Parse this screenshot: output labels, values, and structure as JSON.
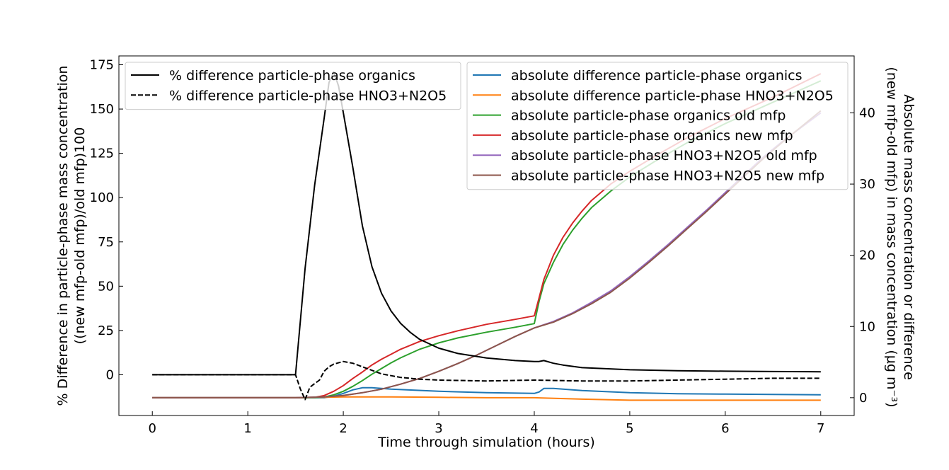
{
  "chart_data": {
    "type": "line",
    "x_axis": {
      "label": "Time through simulation (hours)",
      "range": [
        -0.35,
        7.35
      ],
      "ticks": [
        0,
        1,
        2,
        3,
        4,
        5,
        6,
        7
      ]
    },
    "y_left": {
      "label_line1": "% Difference in particle-phase mass concentration",
      "label_line2": "((new mfp-old mfp)/old mfp)100",
      "range": [
        -23,
        180
      ],
      "ticks": [
        0,
        25,
        50,
        75,
        100,
        125,
        150,
        175
      ]
    },
    "y_right": {
      "label_line1": "Absolute mass concentration or difference",
      "label_line2": "(new mfp-old mfp) in mass concentration (μg  m⁻³)",
      "range": [
        -2.5,
        48
      ],
      "ticks": [
        0,
        10,
        20,
        30,
        40
      ]
    },
    "legend_left": {
      "placement": "top-left",
      "entries": [
        {
          "name": "% difference particle-phase organics",
          "color": "#000000",
          "dash": "solid"
        },
        {
          "name": "% difference particle-phase HNO3+N2O5",
          "color": "#000000",
          "dash": "dashed"
        }
      ]
    },
    "legend_right": {
      "placement": "top-right",
      "entries": [
        {
          "name": "absolute difference particle-phase organics",
          "color": "#1f77b4"
        },
        {
          "name": "absolute difference particle-phase HNO3+N2O5",
          "color": "#ff7f0e"
        },
        {
          "name": "absolute particle-phase organics old mfp",
          "color": "#2ca02c"
        },
        {
          "name": "absolute particle-phase organics new mfp",
          "color": "#d62728"
        },
        {
          "name": "absolute particle-phase HNO3+N2O5 old mfp",
          "color": "#9467bd"
        },
        {
          "name": "absolute particle-phase HNO3+N2O5 new mfp",
          "color": "#8c564b"
        }
      ]
    },
    "series_left": [
      {
        "name": "% difference particle-phase organics",
        "color": "#000000",
        "dash": "solid",
        "x": [
          0,
          1.5,
          1.6,
          1.7,
          1.8,
          1.85,
          1.9,
          1.95,
          2.0,
          2.1,
          2.2,
          2.3,
          2.4,
          2.5,
          2.6,
          2.7,
          2.8,
          3.0,
          3.2,
          3.5,
          3.8,
          4.0,
          4.05,
          4.1,
          4.2,
          4.3,
          4.5,
          5.0,
          5.5,
          6.0,
          6.5,
          7.0
        ],
        "y": [
          0,
          0,
          60,
          107,
          145,
          165,
          171,
          163,
          148,
          117,
          84,
          61,
          46,
          36,
          29,
          24,
          20,
          15,
          12,
          9.5,
          8,
          7.5,
          7.5,
          8,
          6.5,
          5.5,
          4,
          2.8,
          2.3,
          2,
          1.8,
          1.7
        ]
      },
      {
        "name": "% difference particle-phase HNO3+N2O5",
        "color": "#000000",
        "dash": "dashed",
        "x": [
          0,
          1.5,
          1.55,
          1.6,
          1.65,
          1.7,
          1.75,
          1.8,
          1.85,
          1.9,
          2.0,
          2.1,
          2.2,
          2.3,
          2.4,
          2.5,
          2.6,
          2.8,
          3.0,
          3.5,
          4.0,
          4.5,
          5.0,
          5.5,
          6.0,
          6.5,
          7.0
        ],
        "y": [
          0,
          0,
          -8,
          -14,
          -7,
          -5,
          -3,
          2,
          4.5,
          6,
          7.5,
          6.5,
          4.5,
          2.5,
          0.5,
          -0.5,
          -1.5,
          -2.5,
          -3,
          -3.5,
          -3,
          -3.5,
          -3.5,
          -3,
          -2.5,
          -2,
          -2
        ]
      }
    ],
    "series_right": [
      {
        "name": "absolute difference particle-phase organics",
        "color": "#1f77b4",
        "x": [
          0,
          1.5,
          1.8,
          1.9,
          2.0,
          2.1,
          2.2,
          2.3,
          2.5,
          3.0,
          3.5,
          4.0,
          4.05,
          4.1,
          4.2,
          4.5,
          5.0,
          5.5,
          6.0,
          6.5,
          7.0
        ],
        "y": [
          0,
          0,
          0,
          0.2,
          0.6,
          1.1,
          1.4,
          1.4,
          1.2,
          0.9,
          0.7,
          0.6,
          0.8,
          1.3,
          1.3,
          1.0,
          0.7,
          0.55,
          0.5,
          0.45,
          0.4
        ]
      },
      {
        "name": "absolute difference particle-phase HNO3+N2O5",
        "color": "#ff7f0e",
        "x": [
          0,
          1.5,
          1.8,
          2.0,
          2.5,
          3.0,
          3.5,
          4.0,
          4.5,
          5.0,
          5.5,
          6.0,
          6.5,
          7.0
        ],
        "y": [
          0,
          0,
          0.05,
          0.1,
          0.1,
          0.05,
          0,
          0,
          -0.2,
          -0.35,
          -0.35,
          -0.35,
          -0.35,
          -0.35
        ]
      },
      {
        "name": "absolute particle-phase organics old mfp",
        "color": "#2ca02c",
        "x": [
          0,
          1.5,
          1.7,
          1.8,
          1.9,
          2.0,
          2.1,
          2.2,
          2.3,
          2.4,
          2.5,
          2.6,
          2.8,
          3.0,
          3.2,
          3.5,
          3.8,
          4.0,
          4.05,
          4.1,
          4.2,
          4.3,
          4.4,
          4.5,
          4.6,
          4.8,
          5.0,
          5.3,
          5.6,
          6.0,
          6.5,
          7.0
        ],
        "y": [
          0,
          0,
          0,
          0.1,
          0.4,
          0.9,
          1.6,
          2.4,
          3.3,
          4.1,
          4.9,
          5.6,
          6.8,
          7.7,
          8.4,
          9.2,
          9.9,
          10.4,
          13.5,
          16.0,
          19.0,
          21.5,
          23.5,
          25.2,
          26.7,
          29.0,
          31.0,
          33.5,
          35.8,
          38.5,
          41.5,
          44.5
        ]
      },
      {
        "name": "absolute particle-phase organics new mfp",
        "color": "#d62728",
        "x": [
          0,
          1.5,
          1.7,
          1.8,
          1.9,
          2.0,
          2.1,
          2.2,
          2.3,
          2.4,
          2.5,
          2.6,
          2.8,
          3.0,
          3.2,
          3.5,
          3.8,
          4.0,
          4.05,
          4.1,
          4.2,
          4.3,
          4.4,
          4.5,
          4.6,
          4.8,
          5.0,
          5.3,
          5.6,
          6.0,
          6.5,
          7.0
        ],
        "y": [
          0,
          0,
          0.05,
          0.3,
          0.9,
          1.7,
          2.7,
          3.6,
          4.6,
          5.4,
          6.1,
          6.8,
          7.9,
          8.7,
          9.4,
          10.3,
          11.0,
          11.5,
          14.0,
          16.6,
          20.0,
          22.5,
          24.5,
          26.2,
          27.7,
          30.0,
          31.8,
          34.2,
          36.5,
          39.2,
          42.2,
          45.5
        ]
      },
      {
        "name": "absolute particle-phase HNO3+N2O5 old mfp",
        "color": "#9467bd",
        "x": [
          0,
          1.5,
          1.8,
          2.0,
          2.2,
          2.4,
          2.6,
          2.8,
          3.0,
          3.2,
          3.4,
          3.6,
          3.8,
          4.0,
          4.2,
          4.4,
          4.6,
          4.8,
          5.0,
          5.2,
          5.4,
          5.6,
          5.8,
          6.0,
          6.2,
          6.4,
          6.6,
          6.8,
          7.0
        ],
        "y": [
          0,
          0,
          0.1,
          0.3,
          0.7,
          1.2,
          1.9,
          2.7,
          3.7,
          4.8,
          6.0,
          7.3,
          8.6,
          9.8,
          10.7,
          11.9,
          13.4,
          15.0,
          17.0,
          19.2,
          21.5,
          23.9,
          26.3,
          28.8,
          31.3,
          33.8,
          36.0,
          38.0,
          40.0
        ]
      },
      {
        "name": "absolute particle-phase HNO3+N2O5 new mfp",
        "color": "#8c564b",
        "x": [
          0,
          1.5,
          1.8,
          2.0,
          2.2,
          2.4,
          2.6,
          2.8,
          3.0,
          3.2,
          3.4,
          3.6,
          3.8,
          4.0,
          4.2,
          4.4,
          4.6,
          4.8,
          5.0,
          5.2,
          5.4,
          5.6,
          5.8,
          6.0,
          6.2,
          6.4,
          6.6,
          6.8,
          7.0
        ],
        "y": [
          0,
          0,
          0.1,
          0.3,
          0.7,
          1.2,
          1.9,
          2.7,
          3.7,
          4.8,
          6.0,
          7.3,
          8.6,
          9.8,
          10.6,
          11.8,
          13.2,
          14.8,
          16.8,
          19.0,
          21.3,
          23.7,
          26.1,
          28.6,
          31.1,
          33.6,
          35.9,
          38.1,
          40.3
        ]
      }
    ],
    "grid": false
  }
}
